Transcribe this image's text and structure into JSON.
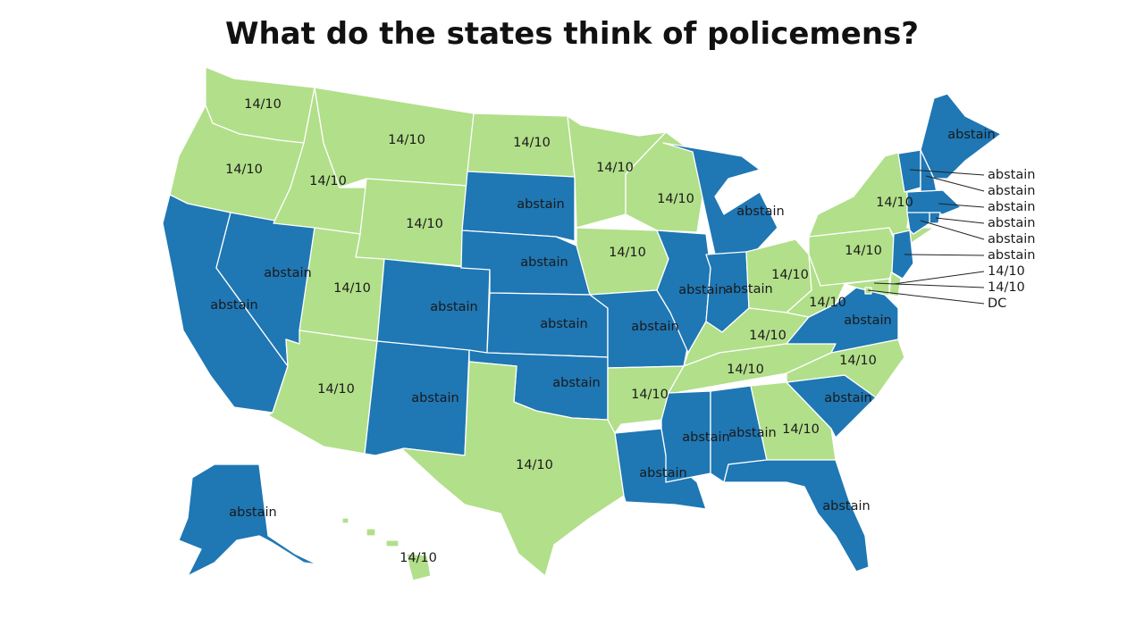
{
  "title": "What do the states think of policemens?",
  "colors": {
    "abstain": "#1f77b4",
    "rating": "#b2df8a"
  },
  "states": {
    "WA": {
      "label": "14/10",
      "group": "rating"
    },
    "OR": {
      "label": "14/10",
      "group": "rating"
    },
    "CA": {
      "label": "abstain",
      "group": "abstain"
    },
    "NV": {
      "label": "abstain",
      "group": "abstain"
    },
    "ID": {
      "label": "14/10",
      "group": "rating"
    },
    "MT": {
      "label": "14/10",
      "group": "rating"
    },
    "WY": {
      "label": "14/10",
      "group": "rating"
    },
    "UT": {
      "label": "14/10",
      "group": "rating"
    },
    "AZ": {
      "label": "14/10",
      "group": "rating"
    },
    "CO": {
      "label": "abstain",
      "group": "abstain"
    },
    "NM": {
      "label": "abstain",
      "group": "abstain"
    },
    "ND": {
      "label": "14/10",
      "group": "rating"
    },
    "SD": {
      "label": "abstain",
      "group": "abstain"
    },
    "NE": {
      "label": "abstain",
      "group": "abstain"
    },
    "KS": {
      "label": "abstain",
      "group": "abstain"
    },
    "OK": {
      "label": "abstain",
      "group": "abstain"
    },
    "TX": {
      "label": "14/10",
      "group": "rating"
    },
    "MN": {
      "label": "14/10",
      "group": "rating"
    },
    "IA": {
      "label": "14/10",
      "group": "rating"
    },
    "MO": {
      "label": "abstain",
      "group": "abstain"
    },
    "AR": {
      "label": "14/10",
      "group": "rating"
    },
    "LA": {
      "label": "abstain",
      "group": "abstain"
    },
    "WI": {
      "label": "14/10",
      "group": "rating"
    },
    "IL": {
      "label": "abstain",
      "group": "abstain"
    },
    "MI": {
      "label": "abstain",
      "group": "abstain"
    },
    "IN": {
      "label": "abstain",
      "group": "abstain"
    },
    "OH": {
      "label": "14/10",
      "group": "rating"
    },
    "KY": {
      "label": "14/10",
      "group": "rating"
    },
    "TN": {
      "label": "14/10",
      "group": "rating"
    },
    "MS": {
      "label": "abstain",
      "group": "abstain"
    },
    "AL": {
      "label": "abstain",
      "group": "abstain"
    },
    "GA": {
      "label": "14/10",
      "group": "rating"
    },
    "FL": {
      "label": "abstain",
      "group": "abstain"
    },
    "SC": {
      "label": "abstain",
      "group": "abstain"
    },
    "NC": {
      "label": "14/10",
      "group": "rating"
    },
    "VA": {
      "label": "abstain",
      "group": "abstain"
    },
    "WV": {
      "label": "14/10",
      "group": "rating"
    },
    "PA": {
      "label": "14/10",
      "group": "rating"
    },
    "NY": {
      "label": "14/10",
      "group": "rating"
    },
    "ME": {
      "label": "abstain",
      "group": "abstain"
    },
    "AK": {
      "label": "abstain",
      "group": "abstain"
    },
    "HI": {
      "label": "14/10",
      "group": "rating"
    },
    "NJ": {
      "label": "abstain",
      "group": "abstain"
    },
    "VT": {
      "label": "abstain",
      "group": "abstain"
    },
    "NH": {
      "label": "abstain",
      "group": "abstain"
    },
    "MA": {
      "label": "abstain",
      "group": "abstain"
    },
    "RI": {
      "label": "abstain",
      "group": "abstain"
    },
    "CT": {
      "label": "abstain",
      "group": "abstain"
    },
    "DE": {
      "label": "14/10",
      "group": "rating"
    },
    "MD": {
      "label": "14/10",
      "group": "rating"
    },
    "DC": {
      "label": "DC",
      "group": "rating"
    }
  },
  "callouts": [
    {
      "state": "VT",
      "text": "abstain"
    },
    {
      "state": "NH",
      "text": "abstain"
    },
    {
      "state": "MA",
      "text": "abstain"
    },
    {
      "state": "RI",
      "text": "abstain"
    },
    {
      "state": "CT",
      "text": "abstain"
    },
    {
      "state": "NJ",
      "text": "abstain"
    },
    {
      "state": "DE",
      "text": "14/10"
    },
    {
      "state": "MD",
      "text": "14/10"
    },
    {
      "state": "DC",
      "text": "DC"
    }
  ]
}
